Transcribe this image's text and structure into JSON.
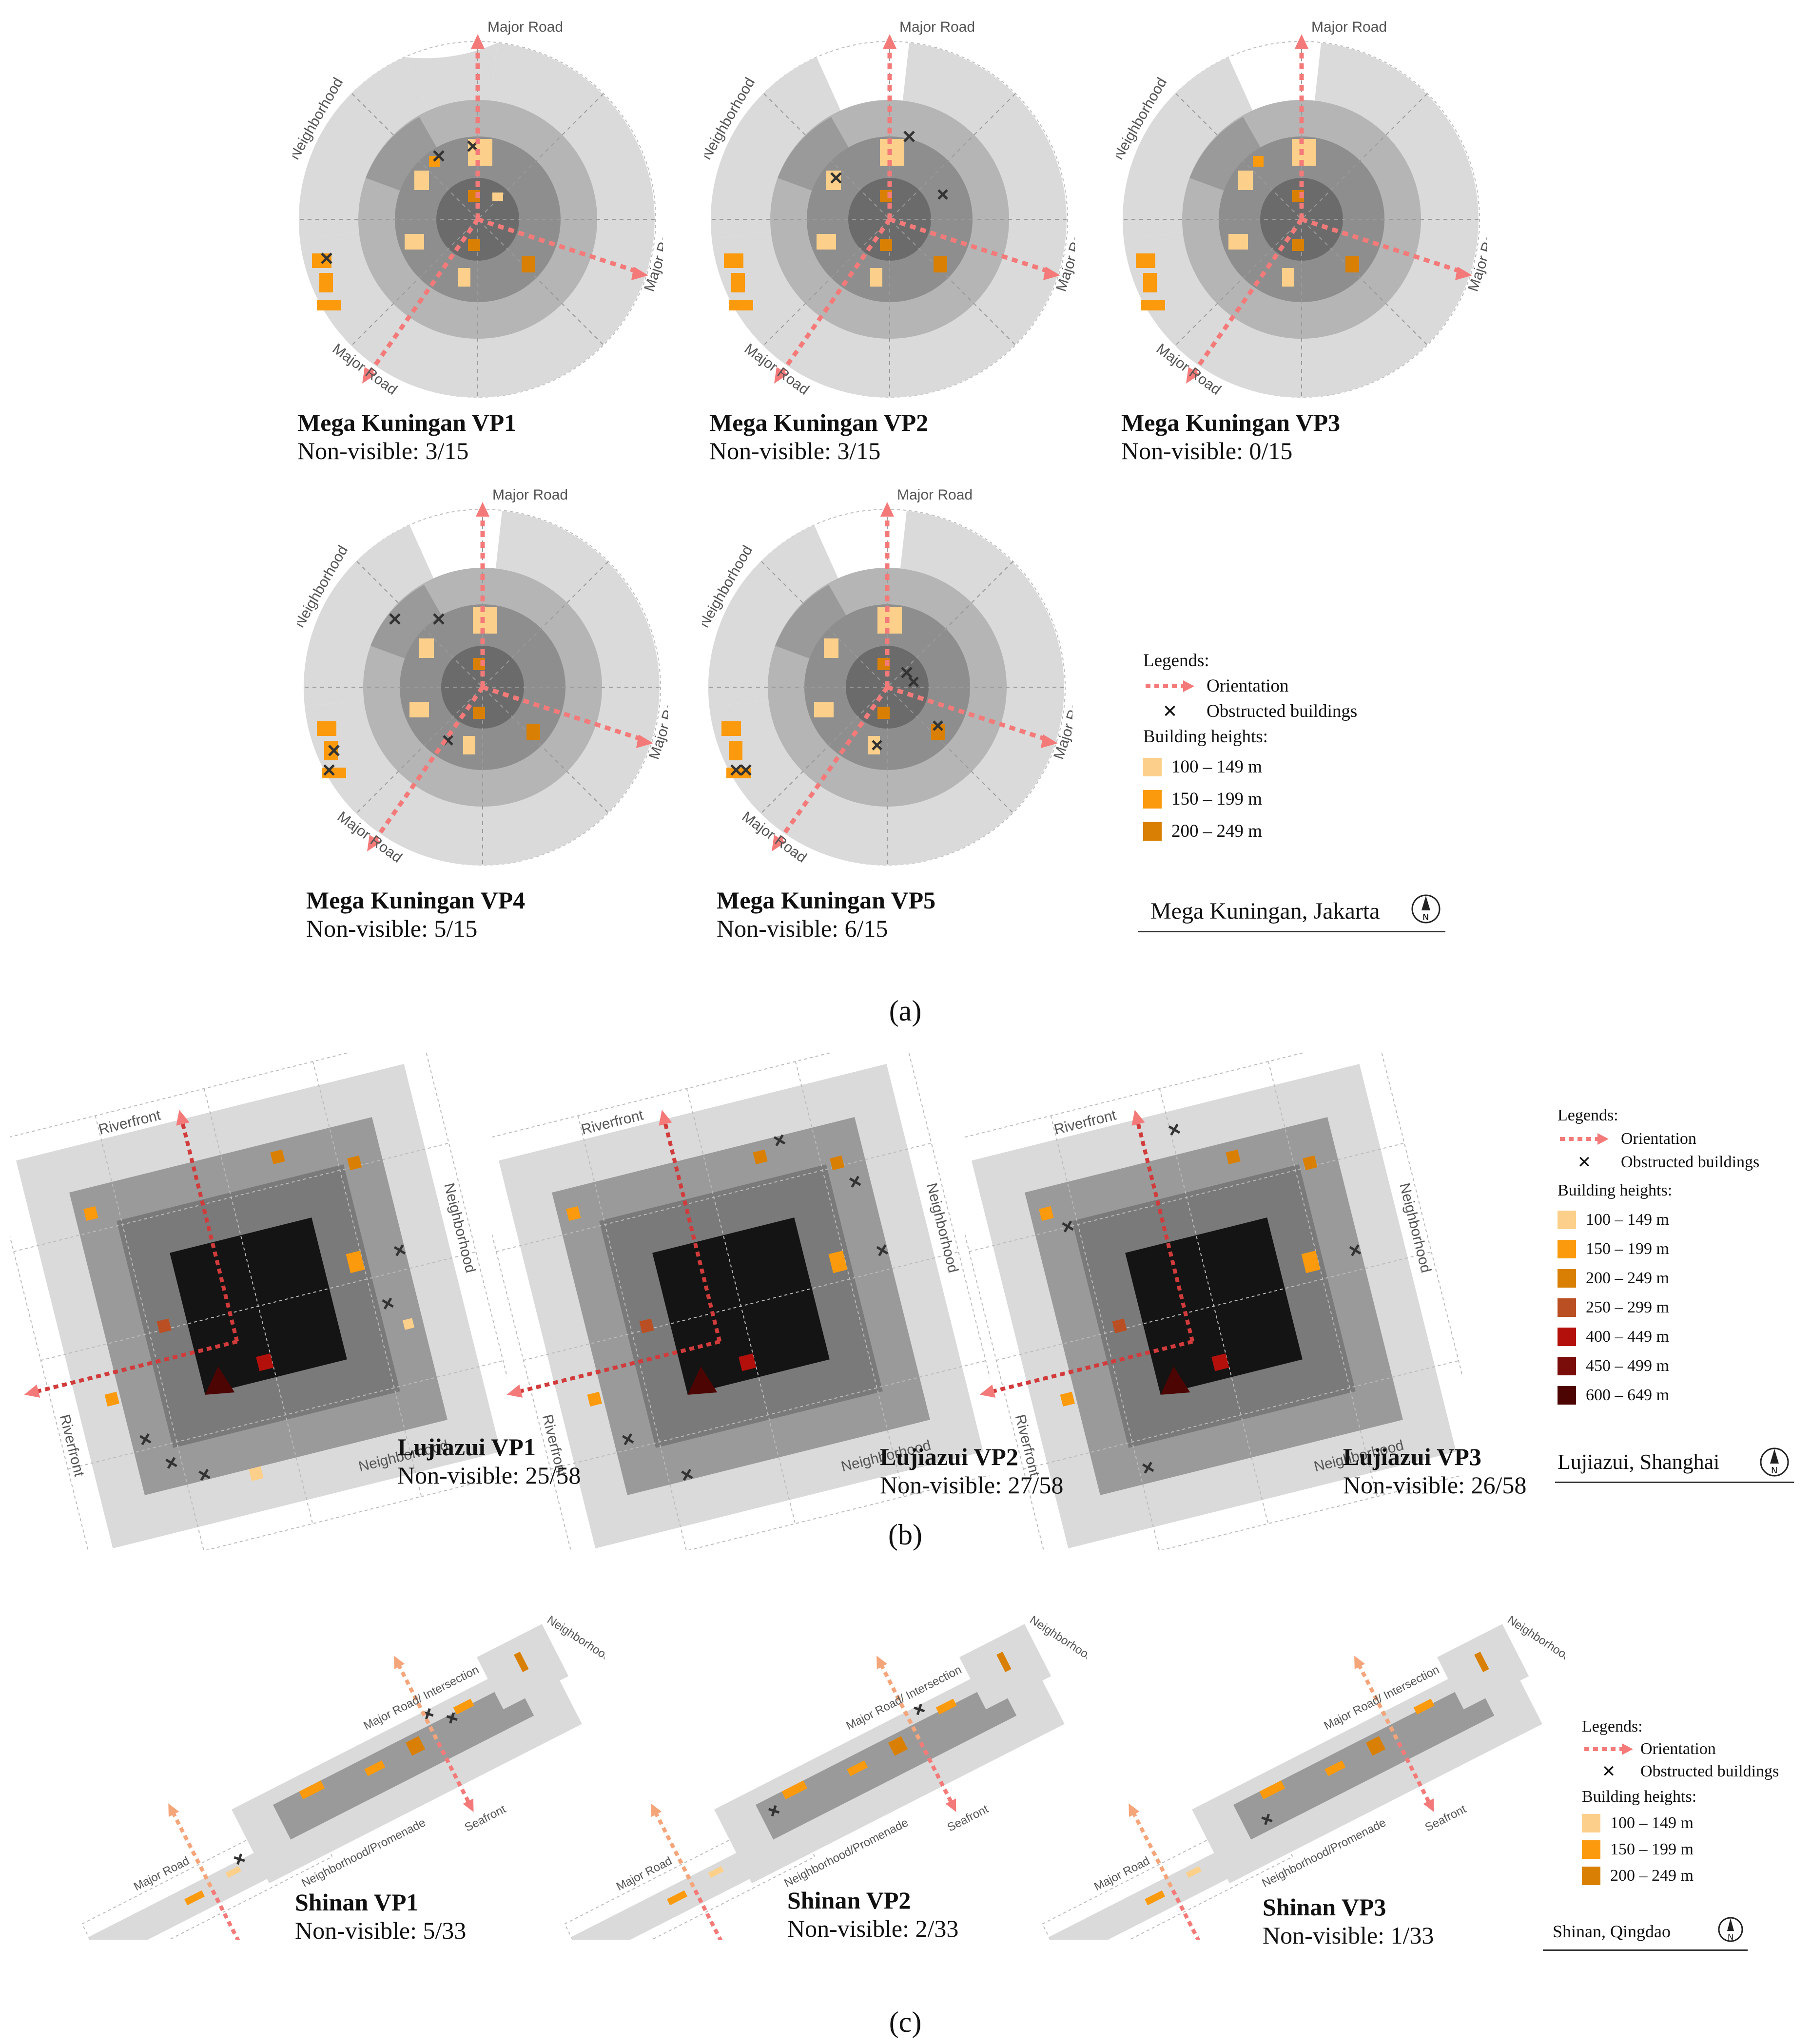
{
  "panels": [
    {
      "label": "(a)",
      "site": "Mega Kuningan, Jakarta",
      "roads": [
        "Major Road",
        "Major Road",
        "Major Road"
      ],
      "context": [
        "Neighborhood"
      ],
      "views": [
        {
          "title": "Mega Kuningan VP1",
          "subtitle": "Non-visible: 3/15"
        },
        {
          "title": "Mega Kuningan VP2",
          "subtitle": "Non-visible: 3/15"
        },
        {
          "title": "Mega Kuningan VP3",
          "subtitle": "Non-visible: 0/15"
        },
        {
          "title": "Mega Kuningan VP4",
          "subtitle": "Non-visible: 5/15"
        },
        {
          "title": "Mega Kuningan VP5",
          "subtitle": "Non-visible: 6/15"
        }
      ],
      "legend": {
        "heading": "Legends:",
        "orientation": "Orientation",
        "obstructed": "Obstructed buildings",
        "heights_heading": "Building heights:",
        "heights": [
          {
            "label": "100 – 149 m",
            "color": "#fcd08a"
          },
          {
            "label": "150 – 199 m",
            "color": "#fb9a0d"
          },
          {
            "label": "200 – 249 m",
            "color": "#d98004"
          }
        ]
      }
    },
    {
      "label": "(b)",
      "site": "Lujiazui, Shanghai",
      "edges": [
        "Riverfront",
        "Riverfront",
        "Neighborhood",
        "Neighborhood"
      ],
      "views": [
        {
          "title": "Lujiazui VP1",
          "subtitle": "Non-visible: 25/58"
        },
        {
          "title": "Lujiazui VP2",
          "subtitle": "Non-visible: 27/58"
        },
        {
          "title": "Lujiazui VP3",
          "subtitle": "Non-visible: 26/58"
        }
      ],
      "legend": {
        "heading": "Legends:",
        "orientation": "Orientation",
        "obstructed": "Obstructed buildings",
        "heights_heading": "Building heights:",
        "heights": [
          {
            "label": "100 – 149 m",
            "color": "#fcd08a"
          },
          {
            "label": "150 – 199 m",
            "color": "#fb9a0d"
          },
          {
            "label": "200 – 249 m",
            "color": "#d98004"
          },
          {
            "label": "250 – 299 m",
            "color": "#bb4f24"
          },
          {
            "label": "400 – 449 m",
            "color": "#b3100c"
          },
          {
            "label": "450 – 499 m",
            "color": "#7a0d09"
          },
          {
            "label": "600 – 649 m",
            "color": "#4d0503"
          }
        ]
      }
    },
    {
      "label": "(c)",
      "site": "Shinan, Qingdao",
      "edges": [
        "Major Road/Intersection",
        "Major Road",
        "Neighborhood",
        "Neighborhood",
        "Neighborhood/Promenade",
        "Seafront",
        "Seafront"
      ],
      "views": [
        {
          "title": "Shinan VP1",
          "subtitle": "Non-visible: 5/33"
        },
        {
          "title": "Shinan VP2",
          "subtitle": "Non-visible: 2/33"
        },
        {
          "title": "Shinan VP3",
          "subtitle": "Non-visible: 1/33"
        }
      ],
      "legend": {
        "heading": "Legends:",
        "orientation": "Orientation",
        "obstructed": "Obstructed buildings",
        "heights_heading": "Building heights:",
        "heights": [
          {
            "label": "100 – 149 m",
            "color": "#fcd08a"
          },
          {
            "label": "150 – 199 m",
            "color": "#fb9a0d"
          },
          {
            "label": "200 – 249 m",
            "color": "#d98004"
          }
        ]
      }
    }
  ],
  "compass_letter": "N",
  "colors": {
    "arrow": "#f47a7a",
    "ring_outer": "#dadada",
    "ring_mid": "#b5b5b5",
    "ring_inner": "#8e8e8e",
    "core": "#6b6b6b",
    "lujiazui_core": "#141414"
  }
}
